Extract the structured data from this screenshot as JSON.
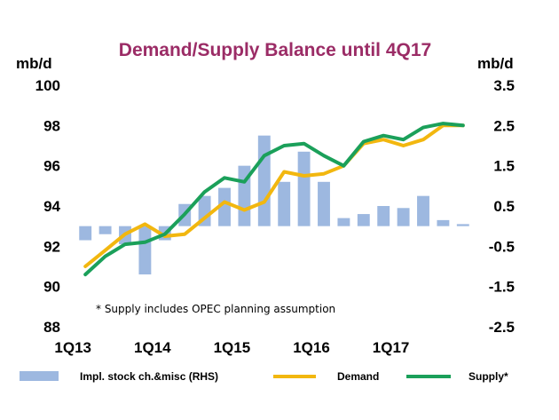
{
  "colors": {
    "title": "#9b2c66",
    "bars": "#9db8e0",
    "demand": "#f2b70f",
    "supply": "#1ba05a",
    "text": "#000000"
  },
  "chart_data": {
    "type": "bar",
    "title": "Demand/Supply Balance until 4Q17",
    "left_unit": "mb/d",
    "right_unit": "mb/d",
    "annotation": "* Supply includes OPEC planning assumption",
    "left_axis": {
      "ylim": [
        88,
        100
      ],
      "ticks": [
        "100",
        "98",
        "96",
        "94",
        "92",
        "90",
        "88"
      ]
    },
    "right_axis": {
      "ylim": [
        -2.5,
        3.5
      ],
      "ticks": [
        "3.5",
        "2.5",
        "1.5",
        "0.5",
        "-0.5",
        "-1.5",
        "-2.5"
      ]
    },
    "x_tick_labels": [
      "1Q13",
      "1Q14",
      "1Q15",
      "1Q16",
      "1Q17"
    ],
    "categories": [
      "1Q13",
      "2Q13",
      "3Q13",
      "4Q13",
      "1Q14",
      "2Q14",
      "3Q14",
      "4Q14",
      "1Q15",
      "2Q15",
      "3Q15",
      "4Q15",
      "1Q16",
      "2Q16",
      "3Q16",
      "4Q16",
      "1Q17",
      "2Q17",
      "3Q17",
      "4Q17"
    ],
    "series": [
      {
        "name": "Impl. stock ch.&misc (RHS)",
        "type": "bar",
        "axis": "right",
        "values": [
          -0.35,
          -0.2,
          -0.45,
          -1.2,
          -0.35,
          0.55,
          0.75,
          0.95,
          1.5,
          2.25,
          1.1,
          1.85,
          1.1,
          0.2,
          0.3,
          0.5,
          0.45,
          0.75,
          0.15,
          0.05
        ]
      },
      {
        "name": "Demand",
        "type": "line",
        "axis": "left",
        "values": [
          91.0,
          91.8,
          92.6,
          93.1,
          92.5,
          92.6,
          93.4,
          94.2,
          93.8,
          94.2,
          95.7,
          95.5,
          95.6,
          96.0,
          97.1,
          97.3,
          97.0,
          97.3,
          98.0,
          98.0
        ]
      },
      {
        "name": "Supply*",
        "type": "line",
        "axis": "left",
        "values": [
          90.6,
          91.5,
          92.1,
          92.2,
          92.6,
          93.6,
          94.7,
          95.4,
          95.2,
          96.5,
          97.0,
          97.1,
          96.5,
          96.0,
          97.2,
          97.5,
          97.3,
          97.9,
          98.1,
          98.0
        ]
      }
    ]
  }
}
